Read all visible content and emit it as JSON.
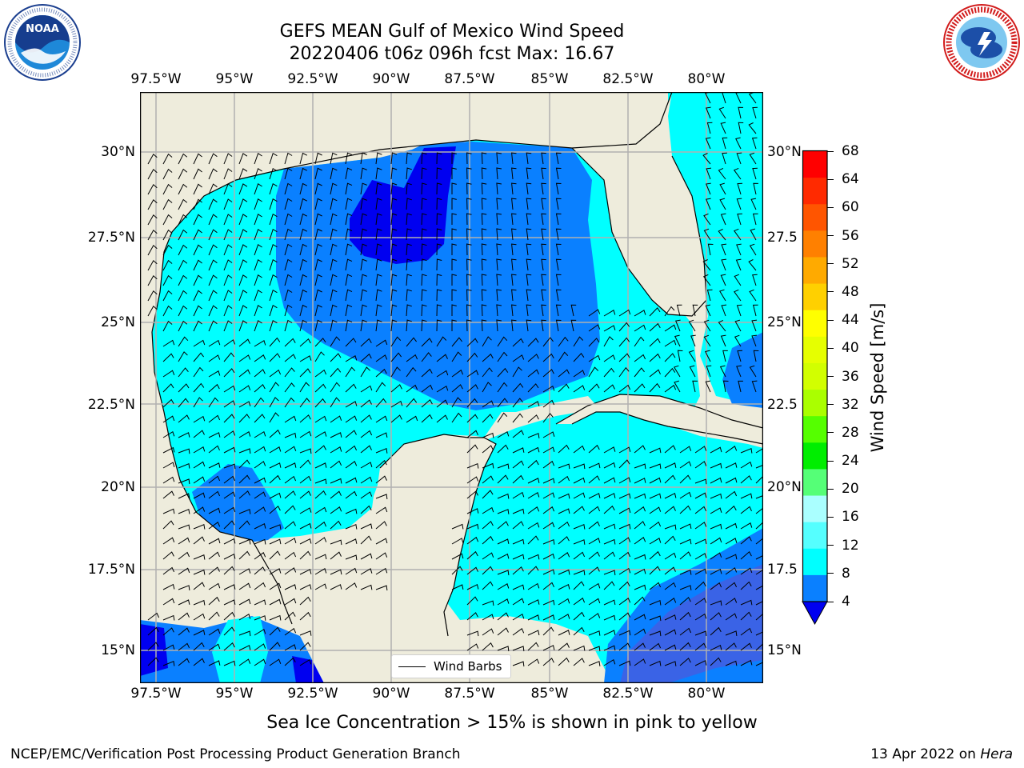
{
  "header": {
    "title": "GEFS MEAN Gulf of Mexico Wind Speed",
    "subtitle": "20220406 t06z 096h fcst   Max: 16.67"
  },
  "logos": {
    "noaa": {
      "text": "NOAA",
      "ring_text": "NATIONAL OCEANIC AND ATMOSPHERIC ADMINISTRATION · U.S. DEPARTMENT OF COMMERCE"
    },
    "nws": {
      "ring_text": "NATIONAL WEATHER SERVICE"
    }
  },
  "map": {
    "lon_labels": [
      "97.5°W",
      "95°W",
      "92.5°W",
      "90°W",
      "87.5°W",
      "85°W",
      "82.5°W",
      "80°W"
    ],
    "lat_labels": [
      "30°N",
      "27.5°N",
      "25°N",
      "22.5°N",
      "20°N",
      "17.5°N",
      "15°N"
    ],
    "right_lat_labels": [
      "30°N",
      "27.5",
      "25°N",
      "22.5",
      "20°N",
      "17.5",
      "15°N"
    ],
    "legend_label": "Wind Barbs",
    "colors": {
      "land": "#eeecdc",
      "c_4_8": "#0a80ff",
      "c_8_12": "#00ffff",
      "c_lt4": "#0000f0",
      "c_2_4": "#3a63e6"
    }
  },
  "colorbar": {
    "label": "Wind Speed [m/s]",
    "ticks": [
      "68",
      "64",
      "60",
      "56",
      "52",
      "48",
      "44",
      "40",
      "36",
      "32",
      "28",
      "24",
      "20",
      "16",
      "12",
      "8",
      "4"
    ],
    "colors": [
      "#ff0000",
      "#ff2a00",
      "#ff5500",
      "#ff8000",
      "#ffaa00",
      "#ffd000",
      "#ffff00",
      "#e6ff00",
      "#d2ff00",
      "#aaff00",
      "#55ff00",
      "#00ee00",
      "#55ff77",
      "#aaffff",
      "#55ffff",
      "#00ffff",
      "#0a80ff"
    ],
    "under_color": "#0000f0"
  },
  "footer": {
    "caption": "Sea Ice Concentration > 15% is shown in pink to yellow",
    "left": "NCEP/EMC/Verification Post Processing Product Generation Branch",
    "right_prefix": "13 Apr 2022 on ",
    "right_machine": "Hera"
  }
}
